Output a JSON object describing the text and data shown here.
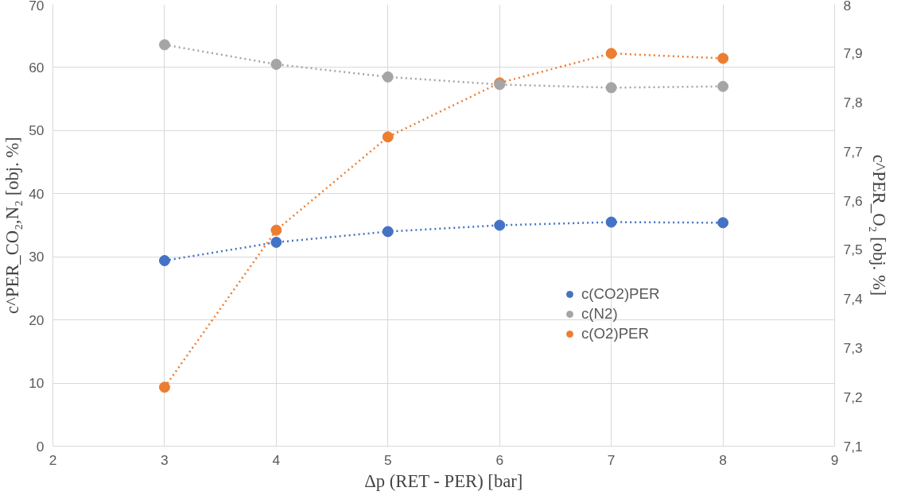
{
  "chart_data": {
    "type": "line",
    "xlabel": "Δp (RET - PER) [bar]",
    "ylabel": "c^PER_CO₂,N₂ [obj. %]",
    "y2label": "c^PER_O₂ [obj. %]",
    "x": [
      3,
      4,
      5,
      6,
      7,
      8
    ],
    "series": [
      {
        "name": "c(CO2)PER",
        "color": "#4472c4",
        "values": [
          29.4,
          32.3,
          34.0,
          35.0,
          35.5,
          35.4
        ]
      },
      {
        "name": "c(N2)",
        "color": "#a5a5a5",
        "values": [
          63.6,
          60.5,
          58.5,
          57.3,
          56.8,
          57.0
        ]
      },
      {
        "name": "c(O2)PER",
        "color": "#ed7d31",
        "axis": "y2",
        "values": [
          7.22,
          7.54,
          7.73,
          7.84,
          7.9,
          7.89
        ]
      }
    ],
    "xlim": [
      2,
      9
    ],
    "xticks": [
      2,
      3,
      4,
      5,
      6,
      7,
      8,
      9
    ],
    "ylim": [
      0,
      70
    ],
    "yticks": [
      0,
      10,
      20,
      30,
      40,
      50,
      60,
      70
    ],
    "y2lim": [
      7.1,
      8
    ],
    "y2ticks": [
      {
        "value": 7.1,
        "label": "7,1"
      },
      {
        "value": 7.2,
        "label": "7,2"
      },
      {
        "value": 7.3,
        "label": "7,3"
      },
      {
        "value": 7.4,
        "label": "7,4"
      },
      {
        "value": 7.5,
        "label": "7,5"
      },
      {
        "value": 7.6,
        "label": "7,6"
      },
      {
        "value": 7.7,
        "label": "7,7"
      },
      {
        "value": 7.8,
        "label": "7,8"
      },
      {
        "value": 7.9,
        "label": "7,9"
      },
      {
        "value": 8,
        "label": "8"
      }
    ],
    "grid": true,
    "legend": "right",
    "marker": "circle",
    "line_style": "dotted"
  }
}
